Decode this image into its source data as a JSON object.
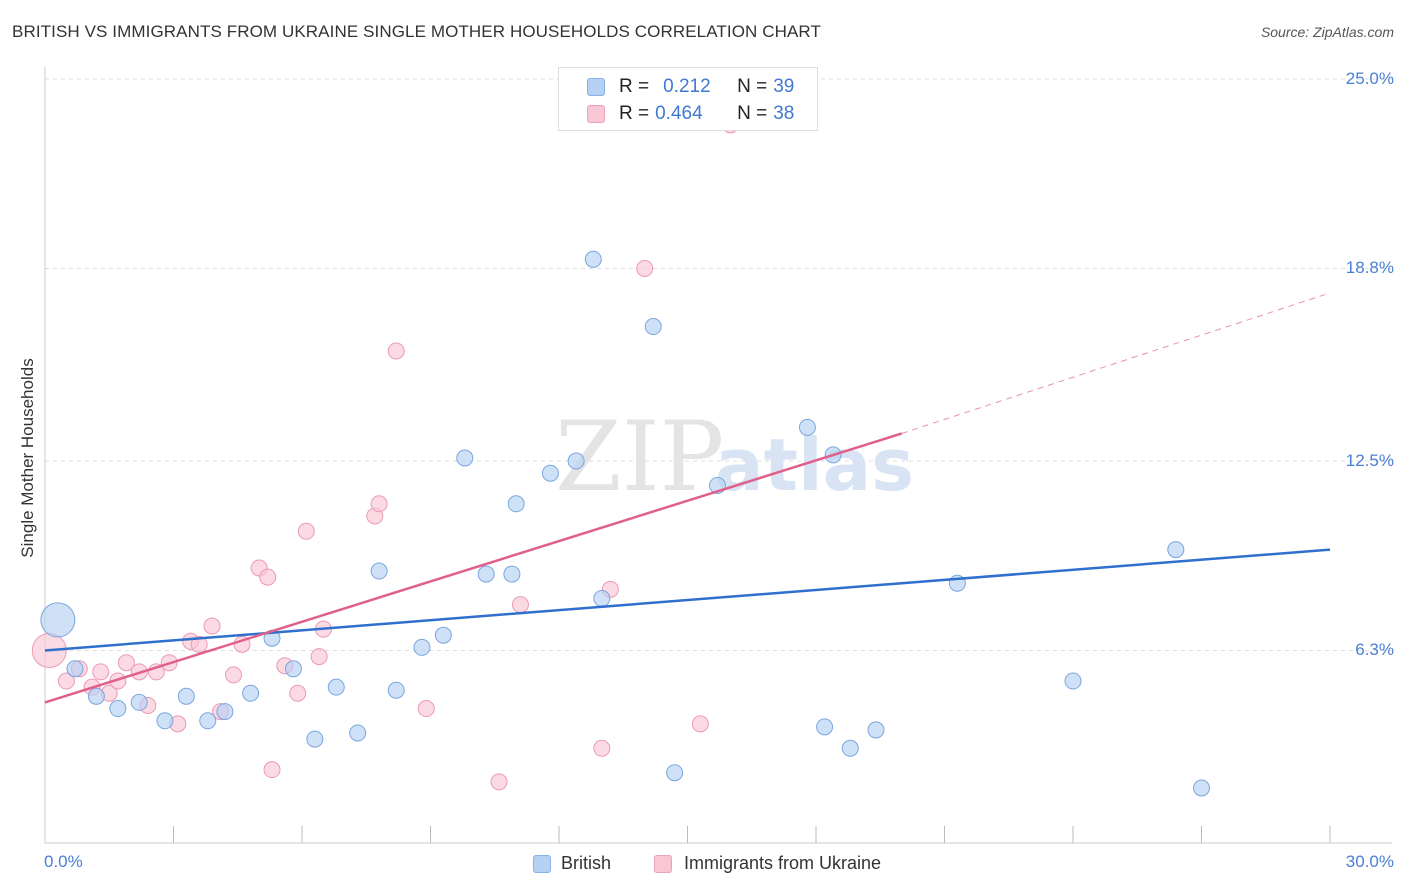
{
  "header": {
    "title": "BRITISH VS IMMIGRANTS FROM UKRAINE SINGLE MOTHER HOUSEHOLDS CORRELATION CHART",
    "source": "Source: ZipAtlas.com"
  },
  "watermark": {
    "zip": "ZIP",
    "atlas": "atlas"
  },
  "legend_top": {
    "r_label": "R =",
    "n_label": "N =",
    "british": {
      "r": "0.212",
      "n": "39"
    },
    "ukraine": {
      "r": "0.464",
      "n": "38"
    }
  },
  "legend_bottom": {
    "british": "British",
    "ukraine": "Immigrants from Ukraine"
  },
  "colors": {
    "british_fill": "#b6d1f3",
    "british_stroke": "#7aa6df",
    "british_line": "#2f6fce",
    "ukraine_fill": "#f9c6d6",
    "ukraine_stroke": "#eb9ab4",
    "ukraine_line": "#e0608b",
    "tick_text": "#4a7fd4",
    "grid": "#dddddd"
  },
  "chart_data": {
    "type": "scatter",
    "title": "BRITISH VS IMMIGRANTS FROM UKRAINE SINGLE MOTHER HOUSEHOLDS CORRELATION CHART",
    "xlabel": "",
    "ylabel": "Single Mother Households",
    "xlim": [
      0,
      30
    ],
    "ylim": [
      0,
      25.0
    ],
    "x_tick_labels": [
      "0.0%",
      "30.0%"
    ],
    "y_ticks": [
      6.3,
      12.5,
      18.8,
      25.0
    ],
    "y_tick_labels": [
      "6.3%",
      "12.5%",
      "18.8%",
      "25.0%"
    ],
    "grid": true,
    "series": [
      {
        "name": "British",
        "r": 0.212,
        "n": 39,
        "trend": {
          "x0": 0,
          "y0": 6.3,
          "x1": 30,
          "y1": 9.6
        },
        "points": [
          {
            "x": 0.3,
            "y": 7.3,
            "big": true
          },
          {
            "x": 0.7,
            "y": 5.7
          },
          {
            "x": 1.2,
            "y": 4.8
          },
          {
            "x": 1.7,
            "y": 4.4
          },
          {
            "x": 2.2,
            "y": 4.6
          },
          {
            "x": 2.8,
            "y": 4.0
          },
          {
            "x": 3.3,
            "y": 4.8
          },
          {
            "x": 3.8,
            "y": 4.0
          },
          {
            "x": 4.2,
            "y": 4.3
          },
          {
            "x": 4.8,
            "y": 4.9
          },
          {
            "x": 5.3,
            "y": 6.7
          },
          {
            "x": 5.8,
            "y": 5.7
          },
          {
            "x": 6.3,
            "y": 3.4
          },
          {
            "x": 6.8,
            "y": 5.1
          },
          {
            "x": 7.3,
            "y": 3.6
          },
          {
            "x": 7.8,
            "y": 8.9
          },
          {
            "x": 8.2,
            "y": 5.0
          },
          {
            "x": 8.8,
            "y": 6.4
          },
          {
            "x": 9.3,
            "y": 6.8
          },
          {
            "x": 9.8,
            "y": 12.6
          },
          {
            "x": 10.3,
            "y": 8.8
          },
          {
            "x": 10.9,
            "y": 8.8
          },
          {
            "x": 11.0,
            "y": 11.1
          },
          {
            "x": 11.8,
            "y": 12.1
          },
          {
            "x": 12.4,
            "y": 12.5
          },
          {
            "x": 13.0,
            "y": 8.0
          },
          {
            "x": 12.8,
            "y": 19.1
          },
          {
            "x": 14.2,
            "y": 16.9
          },
          {
            "x": 14.7,
            "y": 2.3
          },
          {
            "x": 15.7,
            "y": 11.7
          },
          {
            "x": 17.8,
            "y": 13.6
          },
          {
            "x": 18.2,
            "y": 3.8
          },
          {
            "x": 18.4,
            "y": 12.7
          },
          {
            "x": 19.4,
            "y": 3.7
          },
          {
            "x": 18.8,
            "y": 3.1
          },
          {
            "x": 21.3,
            "y": 8.5
          },
          {
            "x": 24.0,
            "y": 5.3
          },
          {
            "x": 26.4,
            "y": 9.6
          },
          {
            "x": 27.0,
            "y": 1.8
          }
        ]
      },
      {
        "name": "Immigrants from Ukraine",
        "r": 0.464,
        "n": 38,
        "trend": {
          "x0": 0,
          "y0": 4.6,
          "x1": 20,
          "y1": 13.4
        },
        "trend_extension": {
          "x0": 20,
          "y0": 13.4,
          "x1": 30,
          "y1": 18.0
        },
        "points": [
          {
            "x": 0.1,
            "y": 6.3,
            "big": true
          },
          {
            "x": 0.5,
            "y": 5.3
          },
          {
            "x": 0.8,
            "y": 5.7
          },
          {
            "x": 1.1,
            "y": 5.1
          },
          {
            "x": 1.3,
            "y": 5.6
          },
          {
            "x": 1.5,
            "y": 4.9
          },
          {
            "x": 1.7,
            "y": 5.3
          },
          {
            "x": 1.9,
            "y": 5.9
          },
          {
            "x": 2.2,
            "y": 5.6
          },
          {
            "x": 2.4,
            "y": 4.5
          },
          {
            "x": 2.6,
            "y": 5.6
          },
          {
            "x": 2.9,
            "y": 5.9
          },
          {
            "x": 3.1,
            "y": 3.9
          },
          {
            "x": 3.4,
            "y": 6.6
          },
          {
            "x": 3.6,
            "y": 6.5
          },
          {
            "x": 3.9,
            "y": 7.1
          },
          {
            "x": 4.1,
            "y": 4.3
          },
          {
            "x": 4.4,
            "y": 5.5
          },
          {
            "x": 4.6,
            "y": 6.5
          },
          {
            "x": 5.0,
            "y": 9.0
          },
          {
            "x": 5.2,
            "y": 8.7
          },
          {
            "x": 5.3,
            "y": 2.4
          },
          {
            "x": 5.6,
            "y": 5.8
          },
          {
            "x": 5.9,
            "y": 4.9
          },
          {
            "x": 6.1,
            "y": 10.2
          },
          {
            "x": 6.4,
            "y": 6.1
          },
          {
            "x": 6.5,
            "y": 7.0
          },
          {
            "x": 7.7,
            "y": 10.7
          },
          {
            "x": 7.8,
            "y": 11.1
          },
          {
            "x": 8.2,
            "y": 16.1
          },
          {
            "x": 8.9,
            "y": 4.4
          },
          {
            "x": 10.6,
            "y": 2.0
          },
          {
            "x": 11.1,
            "y": 7.8
          },
          {
            "x": 13.0,
            "y": 3.1
          },
          {
            "x": 13.2,
            "y": 8.3
          },
          {
            "x": 14.0,
            "y": 18.8
          },
          {
            "x": 15.3,
            "y": 3.9
          },
          {
            "x": 16.0,
            "y": 23.5
          }
        ]
      }
    ]
  }
}
